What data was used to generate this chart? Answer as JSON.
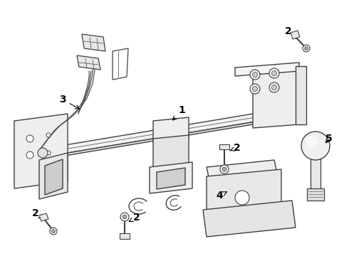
{
  "bg_color": "#ffffff",
  "line_color": "#404040",
  "figsize": [
    4.9,
    3.6
  ],
  "dpi": 100,
  "lw": 1.0
}
